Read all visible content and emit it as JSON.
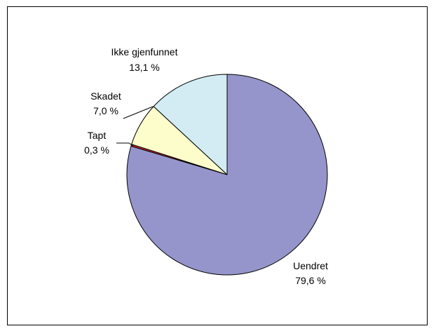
{
  "chart_data": {
    "type": "pie",
    "title": "",
    "start_angle_deg": 90,
    "direction": "clockwise",
    "slices": [
      {
        "label": "Uendret",
        "value": 79.6,
        "value_text": "79,6 %",
        "color": "#9595cb"
      },
      {
        "label": "Tapt",
        "value": 0.3,
        "value_text": "0,3 %",
        "color": "#c8282d"
      },
      {
        "label": "Skadet",
        "value": 7.0,
        "value_text": "7,0 %",
        "color": "#fdfdcb"
      },
      {
        "label": "Ikke gjenfunnet",
        "value": 13.1,
        "value_text": "13,1 %",
        "color": "#d3ecf3"
      }
    ],
    "legend": "none",
    "label_style": "outside labels with leader lines"
  }
}
